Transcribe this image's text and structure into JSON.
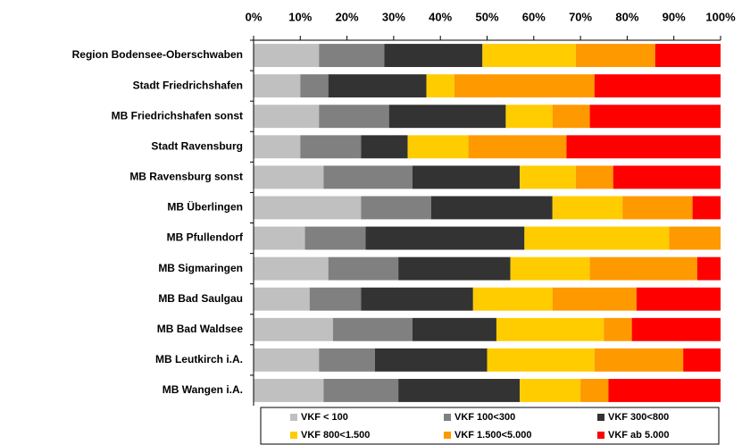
{
  "chart_data": {
    "type": "bar",
    "orientation": "horizontal",
    "stacked": true,
    "categories": [
      "Region Bodensee-Oberschwaben",
      "Stadt Friedrichshafen",
      "MB Friedrichshafen sonst",
      "Stadt Ravensburg",
      "MB Ravensburg sonst",
      "MB Überlingen",
      "MB Pfullendorf",
      "MB Sigmaringen",
      "MB Bad Saulgau",
      "MB Bad Waldsee",
      "MB Leutkirch i.A.",
      "MB Wangen i.A."
    ],
    "series": [
      {
        "name": "VKF < 100",
        "color": "#c0c0c0",
        "values": [
          14,
          10,
          14,
          10,
          15,
          23,
          11,
          16,
          12,
          17,
          14,
          15
        ]
      },
      {
        "name": "VKF 100<300",
        "color": "#808080",
        "values": [
          14,
          6,
          15,
          13,
          19,
          15,
          13,
          15,
          11,
          17,
          12,
          16
        ]
      },
      {
        "name": "VKF 300<800",
        "color": "#333333",
        "values": [
          21,
          21,
          25,
          10,
          23,
          26,
          34,
          24,
          24,
          18,
          24,
          26
        ]
      },
      {
        "name": "VKF 800<1.500",
        "color": "#ffcc00",
        "values": [
          20,
          6,
          10,
          13,
          12,
          15,
          31,
          17,
          17,
          23,
          23,
          13
        ]
      },
      {
        "name": "VKF 1.500<5.000",
        "color": "#ff9900",
        "values": [
          17,
          30,
          8,
          21,
          8,
          15,
          11,
          23,
          18,
          6,
          19,
          6
        ]
      },
      {
        "name": "VKF ab 5.000",
        "color": "#ff0000",
        "values": [
          14,
          27,
          28,
          33,
          23,
          6,
          0,
          5,
          18,
          19,
          8,
          24
        ]
      }
    ],
    "xlim": [
      0,
      100
    ],
    "xticks": [
      {
        "value": 0,
        "label": "0%"
      },
      {
        "value": 10,
        "label": "10%"
      },
      {
        "value": 20,
        "label": "20%"
      },
      {
        "value": 30,
        "label": "30%"
      },
      {
        "value": 40,
        "label": "40%"
      },
      {
        "value": 50,
        "label": "50%"
      },
      {
        "value": 60,
        "label": "60%"
      },
      {
        "value": 70,
        "label": "70%"
      },
      {
        "value": 80,
        "label": "80%"
      },
      {
        "value": 90,
        "label": "90%"
      },
      {
        "value": 100,
        "label": "100%"
      }
    ],
    "legend": "bottom"
  }
}
